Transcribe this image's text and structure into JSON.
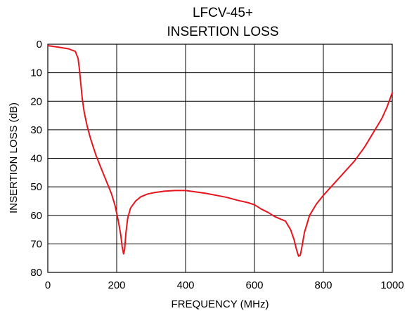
{
  "chart_data": {
    "type": "line",
    "title": [
      "LFCV-45+",
      "INSERTION LOSS"
    ],
    "xlabel": "FREQUENCY (MHz)",
    "ylabel": "INSERTION LOSS (dB)",
    "xlim": [
      0,
      1000
    ],
    "ylim": [
      0,
      80
    ],
    "y_inverted": true,
    "xticks": [
      0,
      200,
      400,
      600,
      800,
      1000
    ],
    "yticks": [
      0,
      10,
      20,
      30,
      40,
      50,
      60,
      70,
      80
    ],
    "grid": true,
    "legend": "none",
    "colors": {
      "series": "#e8141c",
      "grid": "#000000",
      "background": "#ffffff"
    },
    "series": [
      {
        "x": [
          0,
          30,
          60,
          80,
          88,
          92,
          96,
          100,
          106,
          115,
          125,
          140,
          155,
          170,
          185,
          195,
          205,
          212,
          216,
          220,
          223,
          227,
          232,
          240,
          255,
          270,
          290,
          310,
          340,
          370,
          400,
          430,
          460,
          490,
          520,
          550,
          580,
          600,
          620,
          640,
          660,
          690,
          705,
          715,
          722,
          728,
          733,
          738,
          745,
          760,
          780,
          800,
          830,
          860,
          890,
          920,
          950,
          970,
          985,
          1000
        ],
        "y": [
          0.5,
          1.0,
          1.6,
          2.5,
          5.0,
          9.0,
          14.0,
          19.0,
          24.0,
          29.0,
          33.5,
          39.0,
          43.5,
          48.0,
          52.5,
          56.5,
          62.0,
          67.0,
          71.0,
          73.5,
          72.0,
          66.0,
          61.0,
          57.5,
          55.0,
          53.5,
          52.5,
          52.0,
          51.5,
          51.3,
          51.3,
          51.8,
          52.3,
          53.0,
          53.7,
          54.7,
          55.5,
          56.3,
          57.8,
          59.0,
          60.5,
          62.0,
          65.0,
          68.5,
          72.0,
          74.3,
          74.0,
          71.0,
          66.0,
          60.0,
          56.0,
          53.0,
          49.0,
          45.0,
          41.0,
          36.0,
          30.0,
          26.0,
          22.0,
          17.0
        ]
      }
    ]
  }
}
